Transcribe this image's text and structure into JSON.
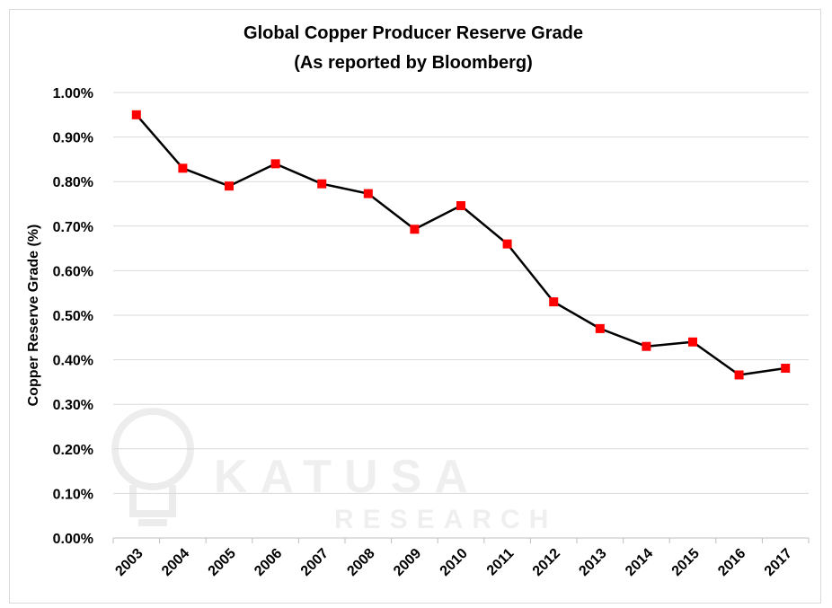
{
  "chart_data": {
    "type": "line",
    "title": "Global Copper Producer Reserve Grade",
    "subtitle": "(As reported by Bloomberg)",
    "xlabel": "",
    "ylabel": "Copper Reserve Grade (%)",
    "categories": [
      "2003",
      "2004",
      "2005",
      "2006",
      "2007",
      "2008",
      "2009",
      "2010",
      "2011",
      "2012",
      "2013",
      "2014",
      "2015",
      "2016",
      "2017"
    ],
    "series": [
      {
        "values": [
          0.95,
          0.83,
          0.79,
          0.84,
          0.795,
          0.773,
          0.693,
          0.746,
          0.66,
          0.53,
          0.47,
          0.43,
          0.44,
          0.366,
          0.381
        ],
        "line_color": "#000000",
        "marker_color": "#ff0000",
        "marker": "square"
      }
    ],
    "y_ticks": [
      "0.00%",
      "0.10%",
      "0.20%",
      "0.30%",
      "0.40%",
      "0.50%",
      "0.60%",
      "0.70%",
      "0.80%",
      "0.90%",
      "1.00%"
    ],
    "ylim": [
      0,
      1.0
    ],
    "grid": true,
    "legend": "none"
  },
  "watermark": {
    "brand": "KATUSA",
    "sub": "RESEARCH",
    "logo_icon": "lightbulb-k-icon"
  },
  "colors": {
    "grid": "#d9d9d9",
    "line": "#000000",
    "marker": "#ff0000"
  }
}
